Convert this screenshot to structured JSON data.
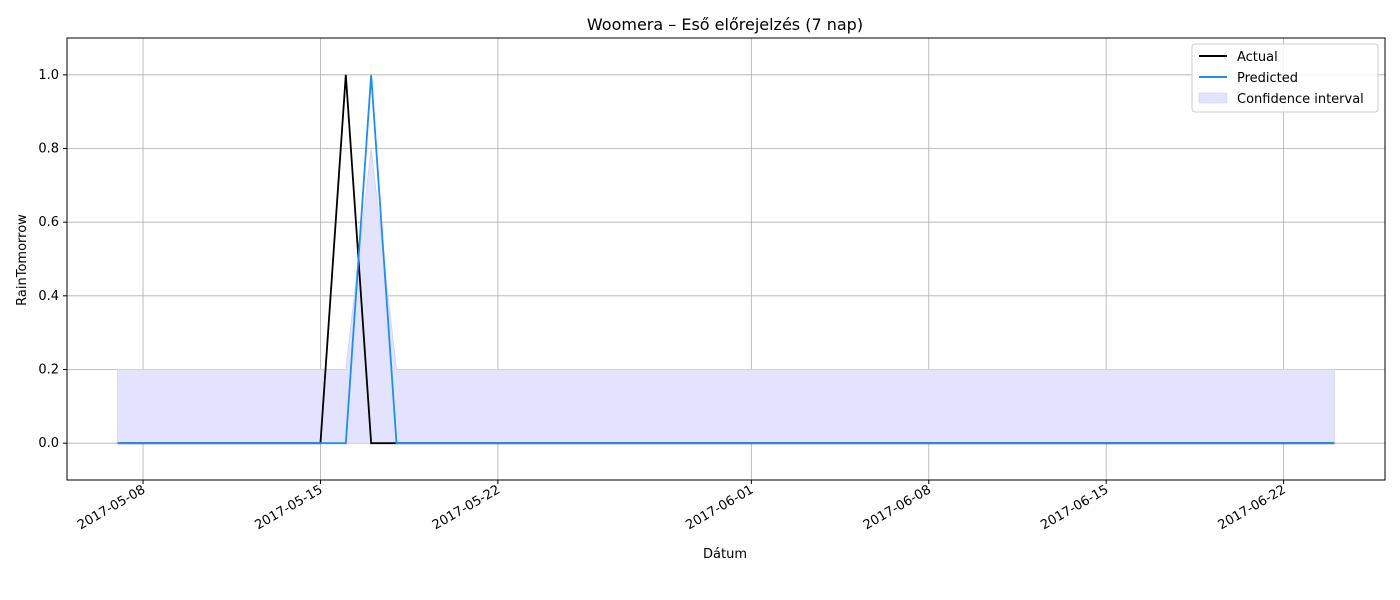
{
  "chart_data": {
    "type": "line",
    "title": "Woomera – Eső előrejelzés (7 nap)",
    "xlabel": "Dátum",
    "ylabel": "RainTomorrow",
    "xlim": [
      "2017-05-05",
      "2017-06-26"
    ],
    "ylim": [
      -0.1,
      1.1
    ],
    "grid": true,
    "legend_position": "top-right",
    "x_ticks": [
      "2017-05-08",
      "2017-05-15",
      "2017-05-22",
      "2017-06-01",
      "2017-06-08",
      "2017-06-15",
      "2017-06-22"
    ],
    "y_ticks": [
      "0.0",
      "0.2",
      "0.4",
      "0.6",
      "0.8",
      "1.0"
    ],
    "series": [
      {
        "name": "Actual",
        "color": "#000000",
        "points": [
          [
            "2017-05-07",
            0
          ],
          [
            "2017-05-15",
            0
          ],
          [
            "2017-05-16",
            1
          ],
          [
            "2017-05-17",
            0
          ],
          [
            "2017-05-18",
            0
          ],
          [
            "2017-06-24",
            0
          ]
        ]
      },
      {
        "name": "Predicted",
        "color": "#1f8ef1",
        "points": [
          [
            "2017-05-07",
            0
          ],
          [
            "2017-05-16",
            0
          ],
          [
            "2017-05-17",
            1
          ],
          [
            "2017-05-18",
            0
          ],
          [
            "2017-06-24",
            0
          ]
        ]
      }
    ],
    "confidence_interval": {
      "name": "Confidence interval",
      "color": "#e3e3fd",
      "lower": [
        [
          "2017-05-07",
          0
        ],
        [
          "2017-06-24",
          0
        ]
      ],
      "upper": [
        [
          "2017-05-07",
          0.2
        ],
        [
          "2017-05-16",
          0.2
        ],
        [
          "2017-05-17",
          0.8
        ],
        [
          "2017-05-18",
          0.2
        ],
        [
          "2017-06-24",
          0.2
        ]
      ]
    }
  }
}
